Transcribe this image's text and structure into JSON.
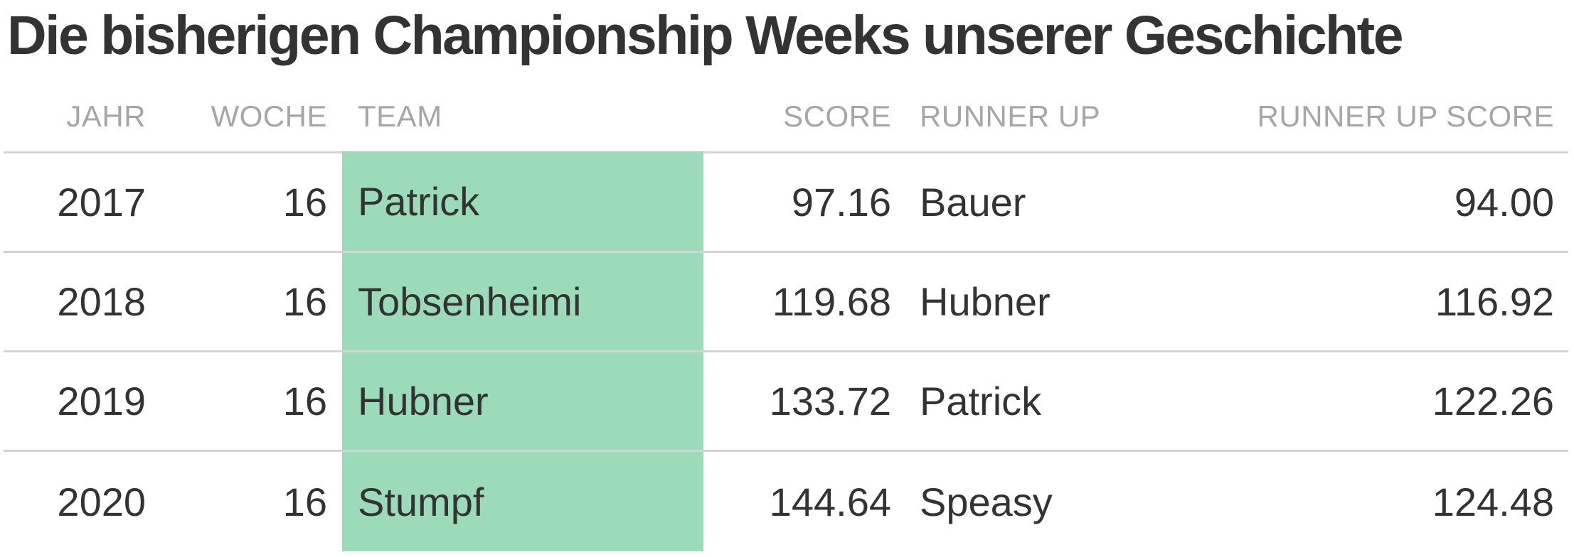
{
  "chart_data": {
    "type": "table",
    "title": "Die bisherigen Championship Weeks unserer Geschichte",
    "columns": [
      "JAHR",
      "WOCHE",
      "TEAM",
      "SCORE",
      "RUNNER UP",
      "RUNNER UP SCORE"
    ],
    "rows": [
      {
        "jahr": "2017",
        "woche": "16",
        "team": "Patrick",
        "score": "97.16",
        "runner_up": "Bauer",
        "runner_up_score": "94.00"
      },
      {
        "jahr": "2018",
        "woche": "16",
        "team": "Tobsenheimi",
        "score": "119.68",
        "runner_up": "Hubner",
        "runner_up_score": "116.92"
      },
      {
        "jahr": "2019",
        "woche": "16",
        "team": "Hubner",
        "score": "133.72",
        "runner_up": "Patrick",
        "runner_up_score": "122.26"
      },
      {
        "jahr": "2020",
        "woche": "16",
        "team": "Stumpf",
        "score": "144.64",
        "runner_up": "Speasy",
        "runner_up_score": "124.48"
      }
    ],
    "highlight_column": "TEAM",
    "colors": {
      "highlight": "#9bdbba",
      "text": "#333333",
      "header_text": "#a6a6a6",
      "rule": "#d4d4d4"
    }
  }
}
